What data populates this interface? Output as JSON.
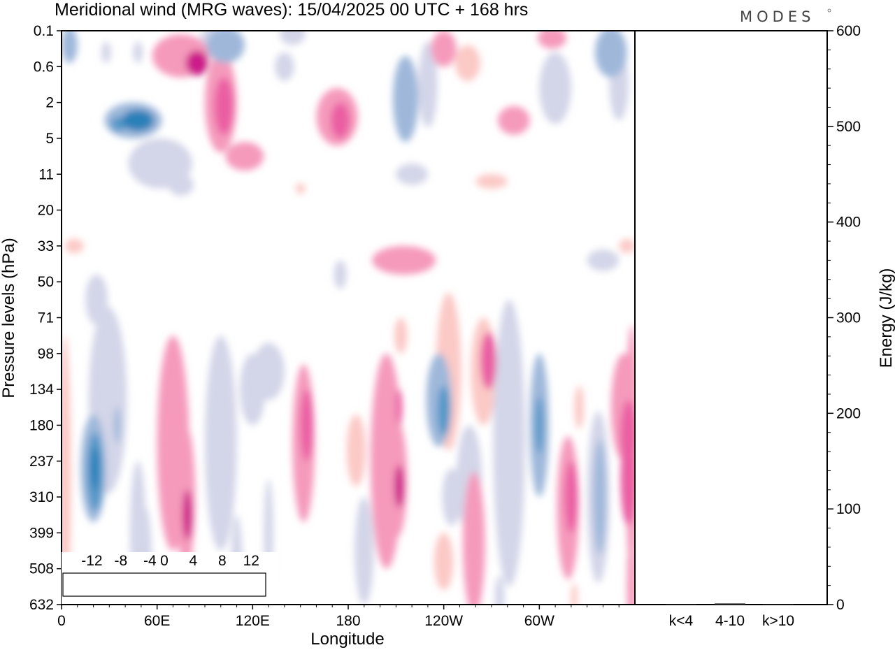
{
  "chart_data": {
    "type": "heatmap",
    "title": "Meridional wind (MRG waves):  15/04/2025  00 UTC  + 168 hrs",
    "brand": "MODES",
    "xlabel": "Longitude",
    "ylabel": "Pressure levels (hPa)",
    "y2label": "Energy (J/kg)",
    "x_ticks": [
      "0",
      "60E",
      "120E",
      "180",
      "120W",
      "60W"
    ],
    "x_tick_degrees": [
      0,
      60,
      120,
      180,
      240,
      300
    ],
    "xlim": [
      0,
      360
    ],
    "y_levels": [
      "0.1",
      "0.6",
      "2",
      "5",
      "11",
      "20",
      "33",
      "50",
      "71",
      "98",
      "134",
      "180",
      "237",
      "310",
      "399",
      "508",
      "632"
    ],
    "y2_ticks": [
      0,
      100,
      200,
      300,
      400,
      500,
      600
    ],
    "y2lim": [
      0,
      600
    ],
    "energy_bars": {
      "categories": [
        "k<4",
        "4-10",
        "k>10"
      ],
      "values": [
        0.3,
        1.2,
        0.3
      ]
    },
    "colorbar": {
      "labels": [
        "-12",
        "-8",
        "-4",
        "0",
        "4",
        "8",
        "12"
      ],
      "levels": [
        -14,
        -12,
        -10,
        -8,
        -6,
        -4,
        -2,
        2,
        4,
        6,
        8,
        10,
        12,
        14
      ],
      "colors": [
        "#0d3450",
        "#19628c",
        "#2a80b8",
        "#5498c8",
        "#99b8da",
        "#ccd0e6",
        "#ffffff",
        "#ffffff",
        "#fbc6c4",
        "#f59abb",
        "#ea5fa3",
        "#cc1a8a",
        "#991075",
        "#5d0a60"
      ]
    },
    "field_colors": {
      "neg1": "#d3d5e8",
      "neg2": "#9fb8da",
      "neg3": "#5498c8",
      "neg4": "#2a80b8",
      "pos1": "#fbc9c6",
      "pos2": "#f59abb",
      "pos3": "#ea5fa3",
      "pos4": "#cc1a8a"
    },
    "blobs": [
      {
        "lon": 5,
        "lev": 0.4,
        "dlon": 5,
        "dlev": 0.5,
        "v": -6
      },
      {
        "lon": 28,
        "lev": 0.6,
        "dlon": 3,
        "dlev": 0.3,
        "v": -4
      },
      {
        "lon": 48,
        "lev": 0.6,
        "dlon": 3,
        "dlev": 0.3,
        "v": -4
      },
      {
        "lon": 75,
        "lev": 0.7,
        "dlon": 18,
        "dlev": 0.6,
        "v": 5
      },
      {
        "lon": 85,
        "lev": 0.9,
        "dlon": 7,
        "dlev": 0.35,
        "v": 10
      },
      {
        "lon": 103,
        "lev": 0.4,
        "dlon": 12,
        "dlev": 0.5,
        "v": -6
      },
      {
        "lon": 95,
        "lev": 0.2,
        "dlon": 8,
        "dlev": 0.3,
        "v": -4
      },
      {
        "lon": 145,
        "lev": 0.1,
        "dlon": 8,
        "dlev": 0.3,
        "v": -4
      },
      {
        "lon": 140,
        "lev": 1.0,
        "dlon": 6,
        "dlev": 0.4,
        "v": -4
      },
      {
        "lon": 240,
        "lev": 0.5,
        "dlon": 8,
        "dlev": 0.5,
        "v": 5
      },
      {
        "lon": 255,
        "lev": 0.9,
        "dlon": 8,
        "dlev": 0.5,
        "v": 4
      },
      {
        "lon": 308,
        "lev": 0.2,
        "dlon": 9,
        "dlev": 0.3,
        "v": 6
      },
      {
        "lon": 345,
        "lev": 0.6,
        "dlon": 10,
        "dlev": 0.7,
        "v": -5
      },
      {
        "lon": 230,
        "lev": 1.5,
        "dlon": 6,
        "dlev": 1.2,
        "v": -4
      },
      {
        "lon": 310,
        "lev": 1.6,
        "dlon": 10,
        "dlev": 1.0,
        "v": -4
      },
      {
        "lon": 350,
        "lev": 1.5,
        "dlon": 6,
        "dlev": 1.0,
        "v": -4
      },
      {
        "lon": 45,
        "lev": 2.5,
        "dlon": 18,
        "dlev": 0.5,
        "v": -6
      },
      {
        "lon": 48,
        "lev": 2.5,
        "dlon": 10,
        "dlev": 0.3,
        "v": -10
      },
      {
        "lon": 36,
        "lev": 2.6,
        "dlon": 5,
        "dlev": 0.2,
        "v": -8
      },
      {
        "lon": 100,
        "lev": 2.0,
        "dlon": 10,
        "dlev": 1.4,
        "v": 5
      },
      {
        "lon": 102,
        "lev": 2.1,
        "dlon": 6,
        "dlev": 0.8,
        "v": 9
      },
      {
        "lon": 173,
        "lev": 2.4,
        "dlon": 13,
        "dlev": 0.8,
        "v": 5
      },
      {
        "lon": 175,
        "lev": 2.5,
        "dlon": 6,
        "dlev": 0.5,
        "v": 8
      },
      {
        "lon": 216,
        "lev": 1.9,
        "dlon": 8,
        "dlev": 1.2,
        "v": -5
      },
      {
        "lon": 284,
        "lev": 2.5,
        "dlon": 10,
        "dlev": 0.4,
        "v": 5
      },
      {
        "lon": 115,
        "lev": 3.5,
        "dlon": 12,
        "dlev": 0.4,
        "v": 5
      },
      {
        "lon": 62,
        "lev": 3.7,
        "dlon": 20,
        "dlev": 0.7,
        "v": -4
      },
      {
        "lon": 75,
        "lev": 4.3,
        "dlon": 8,
        "dlev": 0.3,
        "v": -4
      },
      {
        "lon": 220,
        "lev": 4.0,
        "dlon": 10,
        "dlev": 0.3,
        "v": -4
      },
      {
        "lon": 270,
        "lev": 4.2,
        "dlon": 10,
        "dlev": 0.2,
        "v": 4
      },
      {
        "lon": 150,
        "lev": 4.4,
        "dlon": 3,
        "dlev": 0.15,
        "v": 4
      },
      {
        "lon": 8,
        "lev": 6.0,
        "dlon": 6,
        "dlev": 0.2,
        "v": 4
      },
      {
        "lon": 215,
        "lev": 6.4,
        "dlon": 20,
        "dlev": 0.4,
        "v": 5
      },
      {
        "lon": 355,
        "lev": 6.0,
        "dlon": 5,
        "dlev": 0.2,
        "v": 4
      },
      {
        "lon": 340,
        "lev": 6.4,
        "dlon": 10,
        "dlev": 0.3,
        "v": -4
      },
      {
        "lon": 175,
        "lev": 6.8,
        "dlon": 4,
        "dlev": 0.4,
        "v": -4
      },
      {
        "lon": 22,
        "lev": 7.5,
        "dlon": 7,
        "dlev": 0.7,
        "v": -4
      },
      {
        "lon": 29,
        "lev": 10.3,
        "dlon": 12,
        "dlev": 2.6,
        "v": -4
      },
      {
        "lon": 35,
        "lev": 11.0,
        "dlon": 2,
        "dlev": 0.5,
        "v": -6
      },
      {
        "lon": 20,
        "lev": 12.2,
        "dlon": 8,
        "dlev": 1.5,
        "v": -5
      },
      {
        "lon": 21,
        "lev": 12.3,
        "dlon": 5,
        "dlev": 1.1,
        "v": -8
      },
      {
        "lon": 21,
        "lev": 12.2,
        "dlon": 2.5,
        "dlev": 0.6,
        "v": -10
      },
      {
        "lon": 48,
        "lev": 14.0,
        "dlon": 5,
        "dlev": 2.0,
        "v": -4
      },
      {
        "lon": 70,
        "lev": 11.5,
        "dlon": 10,
        "dlev": 3.0,
        "v": 5
      },
      {
        "lon": 78,
        "lev": 13.0,
        "dlon": 6,
        "dlev": 2.0,
        "v": 6
      },
      {
        "lon": 79,
        "lev": 13.5,
        "dlon": 3,
        "dlev": 0.7,
        "v": 10
      },
      {
        "lon": 77,
        "lev": 11.0,
        "dlon": 3,
        "dlev": 1.0,
        "v": 6
      },
      {
        "lon": 100,
        "lev": 11.5,
        "dlon": 10,
        "dlev": 3.0,
        "v": -4
      },
      {
        "lon": 120,
        "lev": 10.0,
        "dlon": 8,
        "dlev": 1.0,
        "v": -4
      },
      {
        "lon": 130,
        "lev": 9.5,
        "dlon": 10,
        "dlev": 0.8,
        "v": -4
      },
      {
        "lon": 130,
        "lev": 14.0,
        "dlon": 3,
        "dlev": 1.5,
        "v": -4
      },
      {
        "lon": 152,
        "lev": 11.5,
        "dlon": 7,
        "dlev": 2.2,
        "v": 5
      },
      {
        "lon": 154,
        "lev": 11.0,
        "dlon": 4,
        "dlev": 1.0,
        "v": 8
      },
      {
        "lon": 185,
        "lev": 11.7,
        "dlon": 6,
        "dlev": 1.0,
        "v": 4
      },
      {
        "lon": 190,
        "lev": 14.5,
        "dlon": 6,
        "dlev": 1.5,
        "v": -4
      },
      {
        "lon": 204,
        "lev": 12.0,
        "dlon": 10,
        "dlev": 3.0,
        "v": 5
      },
      {
        "lon": 211,
        "lev": 12.5,
        "dlon": 6,
        "dlev": 1.6,
        "v": 6
      },
      {
        "lon": 212,
        "lev": 12.7,
        "dlon": 3,
        "dlev": 0.6,
        "v": 10
      },
      {
        "lon": 212,
        "lev": 10.5,
        "dlon": 2,
        "dlev": 0.5,
        "v": 8
      },
      {
        "lon": 213,
        "lev": 8.5,
        "dlon": 4,
        "dlev": 0.5,
        "v": 4
      },
      {
        "lon": 237,
        "lev": 10.3,
        "dlon": 8,
        "dlev": 1.3,
        "v": -5
      },
      {
        "lon": 240,
        "lev": 10.6,
        "dlon": 4,
        "dlev": 0.7,
        "v": -8
      },
      {
        "lon": 243,
        "lev": 9.5,
        "dlon": 8,
        "dlev": 2.2,
        "v": 4
      },
      {
        "lon": 245,
        "lev": 13.0,
        "dlon": 6,
        "dlev": 0.8,
        "v": -4
      },
      {
        "lon": 256,
        "lev": 12.5,
        "dlon": 8,
        "dlev": 1.5,
        "v": -4
      },
      {
        "lon": 265,
        "lev": 9.5,
        "dlon": 8,
        "dlev": 1.5,
        "v": 4
      },
      {
        "lon": 268,
        "lev": 9.2,
        "dlon": 5,
        "dlev": 0.8,
        "v": 7
      },
      {
        "lon": 240,
        "lev": 14.8,
        "dlon": 6,
        "dlev": 0.8,
        "v": 4
      },
      {
        "lon": 259,
        "lev": 14.3,
        "dlon": 7,
        "dlev": 2.0,
        "v": 5
      },
      {
        "lon": 281,
        "lev": 11.5,
        "dlon": 10,
        "dlev": 4.0,
        "v": -4
      },
      {
        "lon": 300,
        "lev": 11.0,
        "dlon": 6,
        "dlev": 2.0,
        "v": -5
      },
      {
        "lon": 300,
        "lev": 11.0,
        "dlon": 2.5,
        "dlev": 0.8,
        "v": -8
      },
      {
        "lon": 318,
        "lev": 13.3,
        "dlon": 7,
        "dlev": 2.0,
        "v": 5
      },
      {
        "lon": 320,
        "lev": 13.0,
        "dlon": 4,
        "dlev": 1.0,
        "v": 8
      },
      {
        "lon": 325,
        "lev": 10.5,
        "dlon": 3,
        "dlev": 0.6,
        "v": 4
      },
      {
        "lon": 337,
        "lev": 13.0,
        "dlon": 7,
        "dlev": 2.4,
        "v": -4
      },
      {
        "lon": 338,
        "lev": 13.0,
        "dlon": 4,
        "dlev": 1.6,
        "v": -6
      },
      {
        "lon": 353,
        "lev": 10.5,
        "dlon": 8,
        "dlev": 1.5,
        "v": 5
      },
      {
        "lon": 356,
        "lev": 11.3,
        "dlon": 5,
        "dlev": 1.0,
        "v": 8
      },
      {
        "lon": 356,
        "lev": 12.5,
        "dlon": 5,
        "dlev": 1.3,
        "v": 9
      },
      {
        "lon": 358,
        "lev": 11.7,
        "dlon": 4,
        "dlev": 3.5,
        "v": 5
      },
      {
        "lon": 358,
        "lev": 15.5,
        "dlon": 3,
        "dlev": 1.5,
        "v": 5
      },
      {
        "lon": 2,
        "lev": 12.5,
        "dlon": 4,
        "dlev": 4.0,
        "v": 4
      },
      {
        "lon": 53,
        "lev": 15.3,
        "dlon": 4,
        "dlev": 2.0,
        "v": -4
      },
      {
        "lon": 110,
        "lev": 15.5,
        "dlon": 4,
        "dlev": 2.0,
        "v": -4
      },
      {
        "lon": 79,
        "lev": 15.5,
        "dlon": 4,
        "dlev": 1.5,
        "v": 4
      },
      {
        "lon": 115,
        "lev": 15.8,
        "dlon": 4,
        "dlev": 0.6,
        "v": 4
      },
      {
        "lon": 275,
        "lev": 15.8,
        "dlon": 3,
        "dlev": 0.6,
        "v": -4
      },
      {
        "lon": 322,
        "lev": 15.8,
        "dlon": 2,
        "dlev": 0.4,
        "v": 4
      }
    ]
  }
}
